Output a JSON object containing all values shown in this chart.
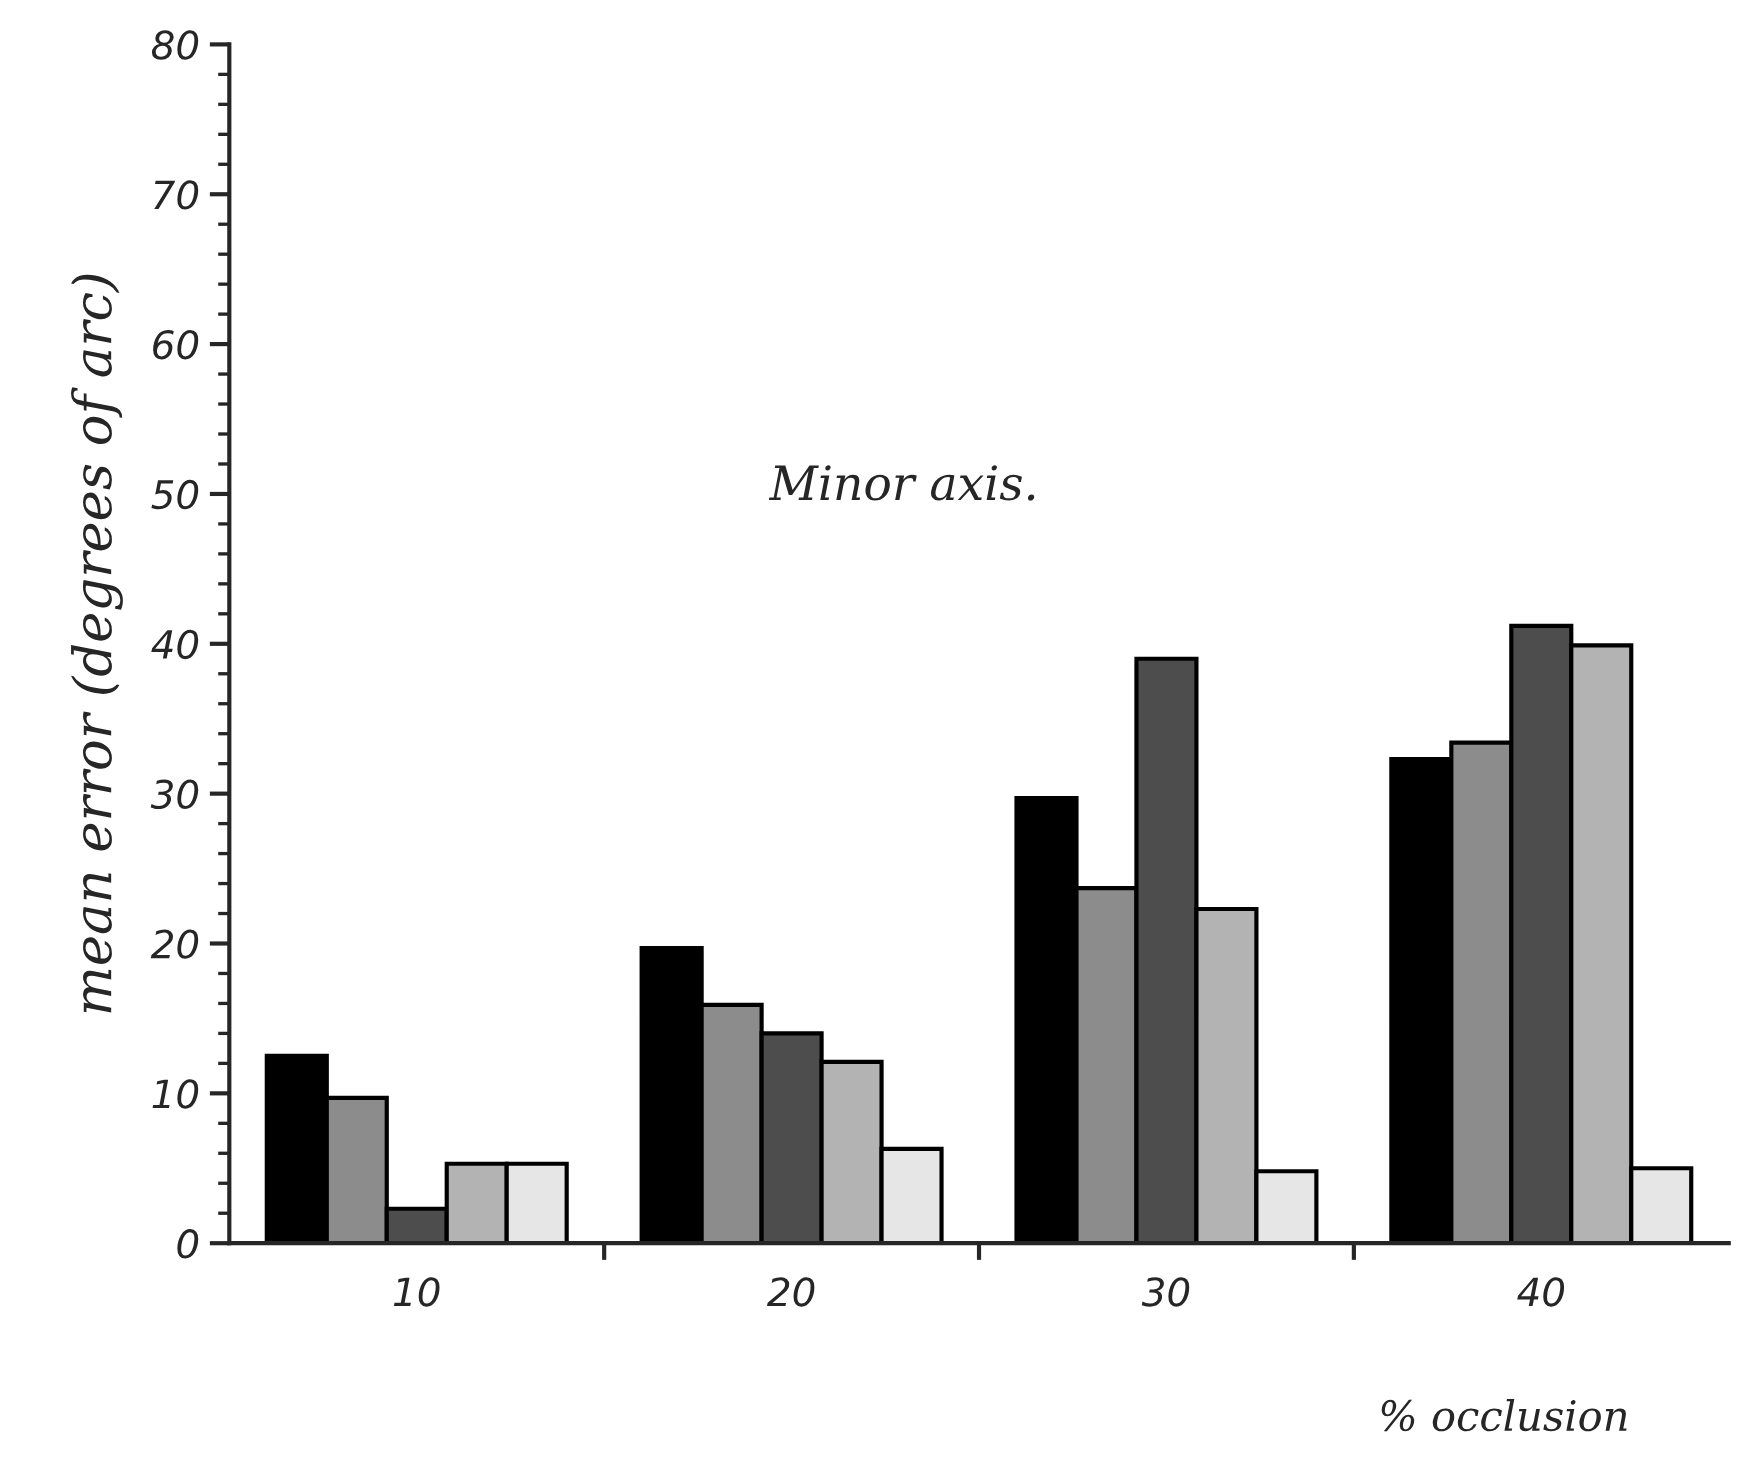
{
  "chart_data": {
    "type": "bar",
    "categories": [
      "10",
      "20",
      "30",
      "40"
    ],
    "series": [
      {
        "color": "#000000",
        "values": [
          12.5,
          19.7,
          29.7,
          32.3
        ]
      },
      {
        "color": "#8c8c8c",
        "values": [
          9.7,
          15.9,
          23.7,
          33.4
        ]
      },
      {
        "color": "#4d4d4d",
        "values": [
          2.3,
          14.0,
          39.0,
          41.2
        ]
      },
      {
        "color": "#b3b3b3",
        "values": [
          5.3,
          12.1,
          22.3,
          39.9
        ]
      },
      {
        "color": "#e6e6e6",
        "values": [
          5.3,
          6.3,
          4.8,
          5.0
        ]
      }
    ],
    "ylabel": "mean error (degrees of arc)",
    "xlabel": "% occlusion",
    "annotations": [
      "Minor axis."
    ],
    "ylim": [
      0,
      80
    ],
    "yticks": [
      0,
      10,
      20,
      30,
      40,
      50,
      60,
      70,
      80
    ],
    "grid": false,
    "legend": false
  }
}
